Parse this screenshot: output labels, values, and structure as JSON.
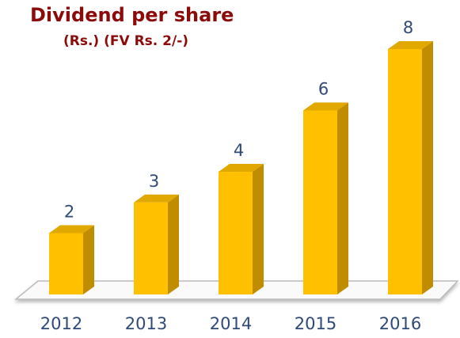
{
  "chart_data": {
    "type": "bar3d",
    "title": "Dividend per share",
    "subtitle": "(Rs.) (FV Rs. 2/-)",
    "categories": [
      "2012",
      "2013",
      "2014",
      "2015",
      "2016"
    ],
    "values": [
      2,
      3,
      4,
      6,
      8
    ],
    "color": "#FFC000",
    "ylim": [
      0,
      8
    ]
  }
}
